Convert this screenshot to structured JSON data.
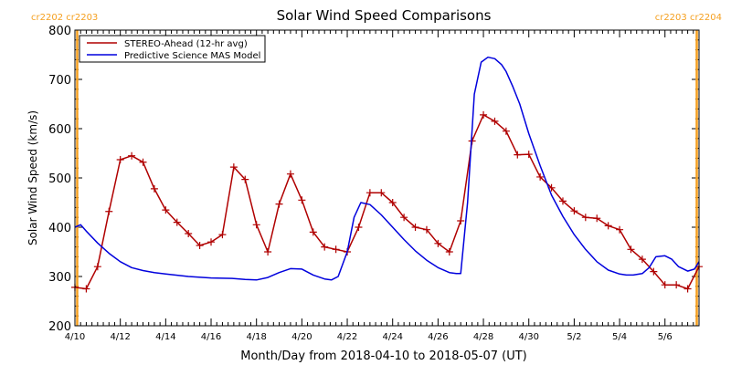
{
  "chart_data": {
    "type": "line",
    "title": "Solar Wind Speed Comparisons",
    "xlabel": "Month/Day from 2018-04-10 to 2018-05-07 (UT)",
    "ylabel": "Solar Wind Speed (km/s)",
    "xlim_days": [
      0,
      27.5
    ],
    "ylim": [
      200,
      800
    ],
    "y_ticks": [
      200,
      300,
      400,
      500,
      600,
      700,
      800
    ],
    "x_ticks": [
      {
        "day": 0,
        "label": "4/10"
      },
      {
        "day": 2,
        "label": "4/12"
      },
      {
        "day": 4,
        "label": "4/14"
      },
      {
        "day": 6,
        "label": "4/16"
      },
      {
        "day": 8,
        "label": "4/18"
      },
      {
        "day": 10,
        "label": "4/20"
      },
      {
        "day": 12,
        "label": "4/22"
      },
      {
        "day": 14,
        "label": "4/24"
      },
      {
        "day": 16,
        "label": "4/26"
      },
      {
        "day": 18,
        "label": "4/28"
      },
      {
        "day": 20,
        "label": "4/30"
      },
      {
        "day": 22,
        "label": "5/2"
      },
      {
        "day": 24,
        "label": "5/4"
      },
      {
        "day": 26,
        "label": "5/6"
      }
    ],
    "carrington": {
      "left_label": "cr2202 cr2203",
      "right_label": "cr2203 cr2204",
      "line_days": [
        0.1,
        27.4
      ],
      "color": "#f5a020"
    },
    "legend_position": "top-left",
    "series": [
      {
        "name": "STEREO-Ahead (12-hr avg)",
        "color": "#b00000",
        "markers": true,
        "x": [
          0.0,
          0.5,
          1.0,
          1.5,
          2.0,
          2.5,
          3.0,
          3.5,
          4.0,
          4.5,
          5.0,
          5.5,
          6.0,
          6.5,
          7.0,
          7.5,
          8.0,
          8.5,
          9.0,
          9.5,
          10.0,
          10.5,
          11.0,
          11.5,
          12.0,
          12.5,
          13.0,
          13.5,
          14.0,
          14.5,
          15.0,
          15.5,
          16.0,
          16.5,
          17.0,
          17.5,
          18.0,
          18.5,
          19.0,
          19.5,
          20.0,
          20.5,
          21.0,
          21.5,
          22.0,
          22.5,
          23.0,
          23.5,
          24.0,
          24.5,
          25.0,
          25.5,
          26.0,
          26.5,
          27.0,
          27.5
        ],
        "y": [
          278,
          275,
          320,
          432,
          537,
          545,
          532,
          478,
          435,
          410,
          387,
          363,
          370,
          385,
          522,
          497,
          405,
          350,
          447,
          508,
          455,
          390,
          360,
          355,
          350,
          400,
          470,
          470,
          450,
          420,
          400,
          395,
          367,
          350,
          413,
          575,
          628,
          615,
          595,
          547,
          548,
          502,
          480,
          453,
          433,
          420,
          418,
          403,
          395,
          355,
          335,
          310,
          283,
          283,
          275,
          320
        ]
      },
      {
        "name": "Predictive Science MAS Model",
        "color": "#0000dd",
        "markers": false,
        "x": [
          0.0,
          0.25,
          0.5,
          1.0,
          1.5,
          2.0,
          2.5,
          3.0,
          3.5,
          4.0,
          5.0,
          6.0,
          7.0,
          7.5,
          8.0,
          8.5,
          9.0,
          9.5,
          10.0,
          10.5,
          11.0,
          11.3,
          11.6,
          12.0,
          12.3,
          12.6,
          13.0,
          13.5,
          14.0,
          14.5,
          15.0,
          15.5,
          16.0,
          16.5,
          16.8,
          17.0,
          17.3,
          17.6,
          17.9,
          18.2,
          18.5,
          18.8,
          19.0,
          19.3,
          19.6,
          20.0,
          20.5,
          21.0,
          21.5,
          22.0,
          22.5,
          23.0,
          23.5,
          24.0,
          24.3,
          24.6,
          25.0,
          25.3,
          25.6,
          26.0,
          26.3,
          26.6,
          27.0,
          27.3,
          27.5
        ],
        "y": [
          400,
          405,
          392,
          368,
          347,
          330,
          318,
          312,
          308,
          305,
          300,
          297,
          296,
          294,
          293,
          298,
          308,
          316,
          315,
          303,
          295,
          293,
          300,
          350,
          420,
          450,
          446,
          425,
          400,
          375,
          352,
          333,
          318,
          308,
          306,
          306,
          450,
          670,
          735,
          745,
          742,
          730,
          716,
          685,
          650,
          590,
          525,
          465,
          422,
          385,
          355,
          330,
          313,
          305,
          303,
          303,
          306,
          318,
          340,
          342,
          335,
          320,
          311,
          315,
          330
        ]
      }
    ]
  }
}
